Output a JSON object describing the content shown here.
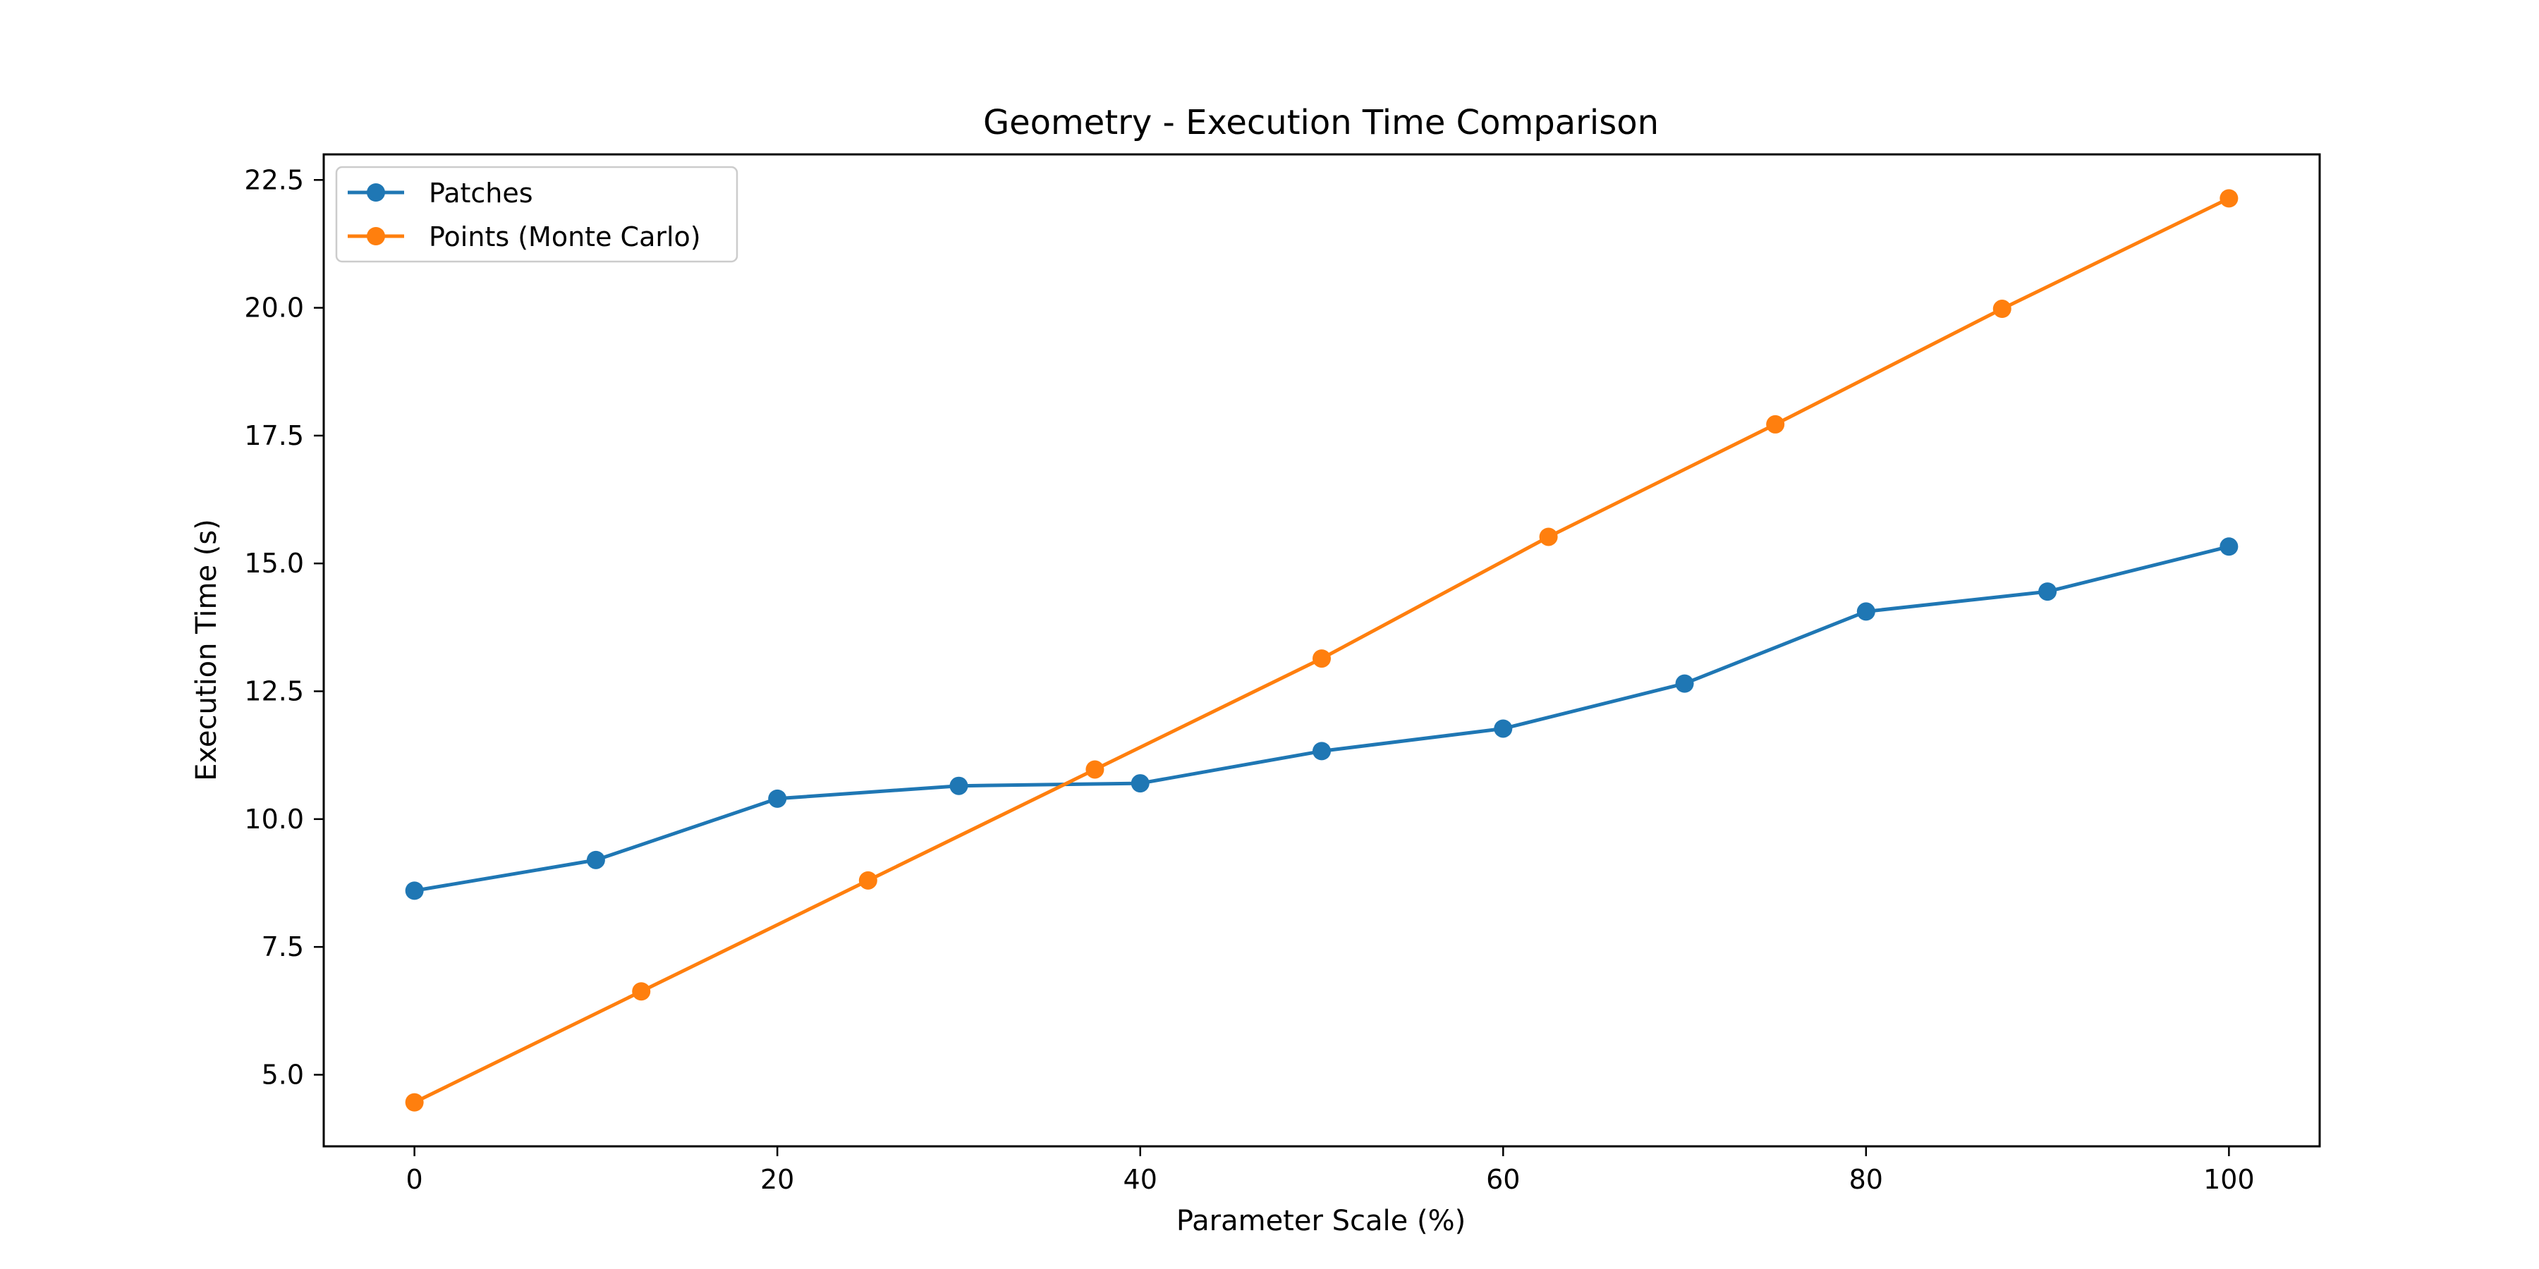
{
  "chart_data": {
    "type": "line",
    "title": "Geometry - Execution Time Comparison",
    "xlabel": "Parameter Scale (%)",
    "ylabel": "Execution Time (s)",
    "xlim": [
      -5,
      105
    ],
    "ylim": [
      3.6,
      23.0
    ],
    "xticks": [
      0,
      20,
      40,
      60,
      80,
      100
    ],
    "xtick_labels": [
      "0",
      "20",
      "40",
      "60",
      "80",
      "100"
    ],
    "yticks": [
      5.0,
      7.5,
      10.0,
      12.5,
      15.0,
      17.5,
      20.0,
      22.5
    ],
    "ytick_labels": [
      "5.0",
      "7.5",
      "10.0",
      "12.5",
      "15.0",
      "17.5",
      "20.0",
      "22.5"
    ],
    "grid": false,
    "legend_position": "top-left",
    "series": [
      {
        "name": "Patches",
        "color": "#1f77b4",
        "x": [
          0,
          10,
          20,
          30,
          40,
          50,
          60,
          70,
          80,
          90,
          100
        ],
        "y": [
          8.6,
          9.2,
          10.4,
          10.65,
          10.7,
          11.33,
          11.77,
          12.65,
          14.06,
          14.45,
          15.33
        ]
      },
      {
        "name": "Points (Monte Carlo)",
        "color": "#ff7f0e",
        "x": [
          0,
          12.5,
          25,
          37.5,
          50,
          62.5,
          75,
          87.5,
          100
        ],
        "y": [
          4.46,
          6.63,
          8.8,
          10.97,
          13.14,
          15.52,
          17.72,
          19.98,
          22.14
        ]
      }
    ]
  }
}
